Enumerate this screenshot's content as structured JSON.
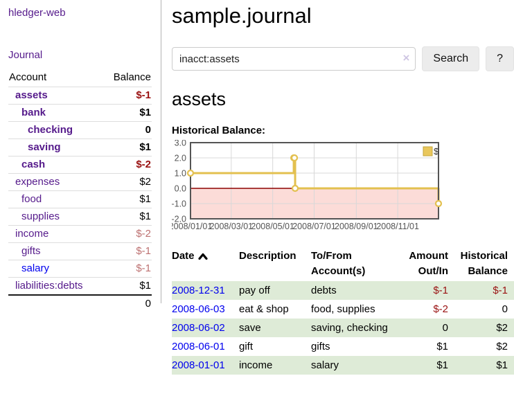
{
  "sidebar": {
    "brand": "hledger-web",
    "journal_link": "Journal",
    "accounts_header": {
      "account": "Account",
      "balance": "Balance"
    },
    "accounts": [
      {
        "label": "assets",
        "indent": 1,
        "bold": true,
        "balance": "$-1",
        "balance_class": "neg"
      },
      {
        "label": "bank",
        "indent": 2,
        "bold": true,
        "balance": "$1",
        "balance_class": ""
      },
      {
        "label": "checking",
        "indent": 3,
        "bold": true,
        "balance": "0",
        "balance_class": ""
      },
      {
        "label": "saving",
        "indent": 3,
        "bold": true,
        "balance": "$1",
        "balance_class": ""
      },
      {
        "label": "cash",
        "indent": 2,
        "bold": true,
        "balance": "$-2",
        "balance_class": "neg"
      },
      {
        "label": "expenses",
        "indent": 1,
        "bold": false,
        "balance": "$2",
        "balance_class": ""
      },
      {
        "label": "food",
        "indent": 2,
        "bold": false,
        "balance": "$1",
        "balance_class": ""
      },
      {
        "label": "supplies",
        "indent": 2,
        "bold": false,
        "balance": "$1",
        "balance_class": ""
      },
      {
        "label": "income",
        "indent": 1,
        "bold": false,
        "balance": "$-2",
        "balance_class": "negpale"
      },
      {
        "label": "gifts",
        "indent": 2,
        "bold": false,
        "balance": "$-1",
        "balance_class": "negpale"
      },
      {
        "label": "salary",
        "indent": 2,
        "bold": false,
        "blue": true,
        "balance": "$-1",
        "balance_class": "negpale"
      },
      {
        "label": "liabilities:debts",
        "indent": 1,
        "bold": false,
        "balance": "$1",
        "balance_class": ""
      }
    ],
    "total": "0"
  },
  "main": {
    "title": "sample.journal",
    "search": {
      "value": "inacct:assets",
      "clear_icon": "×",
      "button_label": "Search",
      "help_label": "?"
    },
    "account_heading": "assets"
  },
  "chart_data": {
    "type": "line",
    "title": "Historical Balance:",
    "step": true,
    "series": [
      {
        "name": "$",
        "points": [
          [
            "2008-01-01",
            1
          ],
          [
            "2008-06-01",
            2
          ],
          [
            "2008-06-02",
            2
          ],
          [
            "2008-06-03",
            0
          ],
          [
            "2008-12-31",
            -1
          ]
        ]
      }
    ],
    "ylim": [
      -2,
      3
    ],
    "yticks": [
      3.0,
      2.0,
      1.0,
      0.0,
      -1.0,
      -2.0
    ],
    "ytick_labels": [
      "3.0",
      "2.0",
      "1.0",
      "0.0",
      "-1.0",
      "-2.0"
    ],
    "xticks": [
      "2008-01-01",
      "2008-03-01",
      "2008-05-01",
      "2008-07-01",
      "2008-09-01",
      "2008-11-01"
    ],
    "xtick_labels": [
      "2008/01/01",
      "2008/03/01",
      "2008/05/01",
      "2008/07/01",
      "2008/09/01",
      "2008/11/01"
    ],
    "xrange": [
      "2008-01-01",
      "2008-12-31"
    ],
    "legend": {
      "label": "$",
      "position": "top-right"
    },
    "grid": true,
    "colors": {
      "line": "#e3c04f",
      "marker_fill": "#ffffff",
      "negative_region": "#fcdcd8",
      "zero_line": "#8b0000",
      "gridline": "#d8d8d8",
      "border": "#545454",
      "tick_text": "#545454",
      "legend_fill": "#e9c75c",
      "legend_border": "#c3a53e"
    }
  },
  "register": {
    "headers": [
      {
        "label": "Date",
        "sort": "asc"
      },
      {
        "label": "Description"
      },
      {
        "label": "To/From Account(s)"
      },
      {
        "label": "Amount Out/In",
        "align": "right"
      },
      {
        "label": "Historical Balance",
        "align": "right"
      }
    ],
    "rows": [
      {
        "date": "2008-12-31",
        "description": "pay off",
        "accounts": "debts",
        "amount": "$-1",
        "amount_negative": true,
        "balance": "$-1",
        "balance_negative": true
      },
      {
        "date": "2008-06-03",
        "description": "eat & shop",
        "accounts": "food, supplies",
        "amount": "$-2",
        "amount_negative": true,
        "balance": "0",
        "balance_negative": false
      },
      {
        "date": "2008-06-02",
        "description": "save",
        "accounts": "saving, checking",
        "amount": "0",
        "amount_negative": false,
        "balance": "$2",
        "balance_negative": false
      },
      {
        "date": "2008-06-01",
        "description": "gift",
        "accounts": "gifts",
        "amount": "$1",
        "amount_negative": false,
        "balance": "$2",
        "balance_negative": false
      },
      {
        "date": "2008-01-01",
        "description": "income",
        "accounts": "salary",
        "amount": "$1",
        "amount_negative": false,
        "balance": "$1",
        "balance_negative": false
      }
    ]
  },
  "colors": {
    "link_purple": "#551a8b",
    "link_blue": "#0000ee",
    "negative_red": "#991111",
    "negative_pale": "#bd7171",
    "row_green": "#deebd7"
  }
}
